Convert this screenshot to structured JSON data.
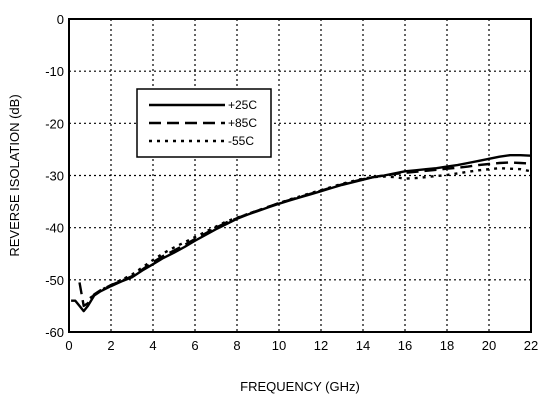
{
  "chart_data": {
    "type": "line",
    "title": "",
    "xlabel": "FREQUENCY (GHz)",
    "ylabel": "REVERSE ISOLATION (dB)",
    "xlim": [
      0,
      22
    ],
    "ylim": [
      -60,
      0
    ],
    "xticks": [
      "0",
      "2",
      "4",
      "6",
      "8",
      "10",
      "12",
      "14",
      "16",
      "18",
      "20",
      "22"
    ],
    "yticks": [
      "0",
      "-10",
      "-20",
      "-30",
      "-40",
      "-50",
      "-60"
    ],
    "grid": true,
    "legend_position": "top-left",
    "series": [
      {
        "name": "+25C",
        "style": "solid",
        "color": "#000000",
        "x": [
          0.1,
          0.3,
          0.5,
          0.7,
          0.9,
          1.2,
          1.5,
          2,
          2.5,
          3,
          3.5,
          4,
          4.5,
          5,
          5.5,
          6,
          6.5,
          7,
          7.5,
          8,
          8.5,
          9,
          9.5,
          10,
          10.5,
          11,
          11.5,
          12,
          12.5,
          13,
          13.5,
          14,
          14.5,
          15,
          15.5,
          16,
          16.5,
          17,
          17.5,
          18,
          18.5,
          19,
          19.5,
          20,
          20.5,
          21,
          21.5,
          22
        ],
        "y": [
          -54,
          -54,
          -55,
          -56,
          -55,
          -53,
          -52.2,
          -51.2,
          -50.3,
          -49.5,
          -48.2,
          -47,
          -45.8,
          -44.8,
          -43.7,
          -42.5,
          -41.4,
          -40.3,
          -39.3,
          -38.3,
          -37.5,
          -36.8,
          -36.1,
          -35.4,
          -34.8,
          -34.2,
          -33.6,
          -33,
          -32.4,
          -31.8,
          -31.3,
          -30.8,
          -30.3,
          -30,
          -29.6,
          -29.2,
          -29,
          -28.8,
          -28.6,
          -28.3,
          -28,
          -27.6,
          -27.2,
          -26.8,
          -26.4,
          -26.1,
          -26.1,
          -26.2
        ]
      },
      {
        "name": "+85C",
        "style": "dashed",
        "color": "#000000",
        "x": [
          0.5,
          0.7,
          0.9,
          1.2,
          1.5,
          2,
          2.5,
          3,
          3.5,
          4,
          4.5,
          5,
          5.5,
          6,
          6.5,
          7,
          7.5,
          8,
          8.5,
          9,
          9.5,
          10,
          10.5,
          11,
          11.5,
          12,
          12.5,
          13,
          13.5,
          14,
          14.5,
          15,
          15.5,
          16,
          16.5,
          17,
          17.5,
          18,
          18.5,
          19,
          19.5,
          20,
          20.5,
          21,
          21.5,
          22
        ],
        "y": [
          -50.5,
          -55,
          -54.5,
          -52.8,
          -52,
          -51,
          -50.2,
          -49.3,
          -48,
          -46.6,
          -45.4,
          -44.4,
          -43.3,
          -42.2,
          -41.1,
          -40,
          -39,
          -38.2,
          -37.4,
          -36.7,
          -36,
          -35.3,
          -34.7,
          -34.1,
          -33.5,
          -32.9,
          -32.3,
          -31.7,
          -31.2,
          -30.7,
          -30.3,
          -30,
          -29.7,
          -29.5,
          -29.3,
          -29.1,
          -28.9,
          -28.7,
          -28.5,
          -28.3,
          -28,
          -27.8,
          -27.6,
          -27.5,
          -27.6,
          -27.7
        ]
      },
      {
        "name": "-55C",
        "style": "dotted",
        "color": "#000000",
        "x": [
          1,
          1.5,
          2,
          2.5,
          3,
          3.5,
          4,
          4.5,
          5,
          5.5,
          6,
          6.5,
          7,
          7.5,
          8,
          8.5,
          9,
          9.5,
          10,
          10.5,
          11,
          11.5,
          12,
          12.5,
          13,
          13.5,
          14,
          14.5,
          15,
          15.5,
          16,
          16.5,
          17,
          17.5,
          18,
          18.5,
          19,
          19.5,
          20,
          20.5,
          21,
          21.5,
          22
        ],
        "y": [
          -53.5,
          -52,
          -51,
          -50,
          -49,
          -47.6,
          -46.2,
          -44.9,
          -43.8,
          -42.8,
          -41.8,
          -40.8,
          -39.8,
          -38.8,
          -38.1,
          -37.4,
          -36.7,
          -36,
          -35.3,
          -34.6,
          -34,
          -33.4,
          -32.8,
          -32.2,
          -31.6,
          -31.1,
          -30.6,
          -30.3,
          -30.2,
          -30.3,
          -30.6,
          -30.5,
          -30.3,
          -30.1,
          -29.9,
          -29.6,
          -29.3,
          -29,
          -28.8,
          -28.6,
          -28.7,
          -28.8,
          -29.2
        ]
      }
    ]
  }
}
